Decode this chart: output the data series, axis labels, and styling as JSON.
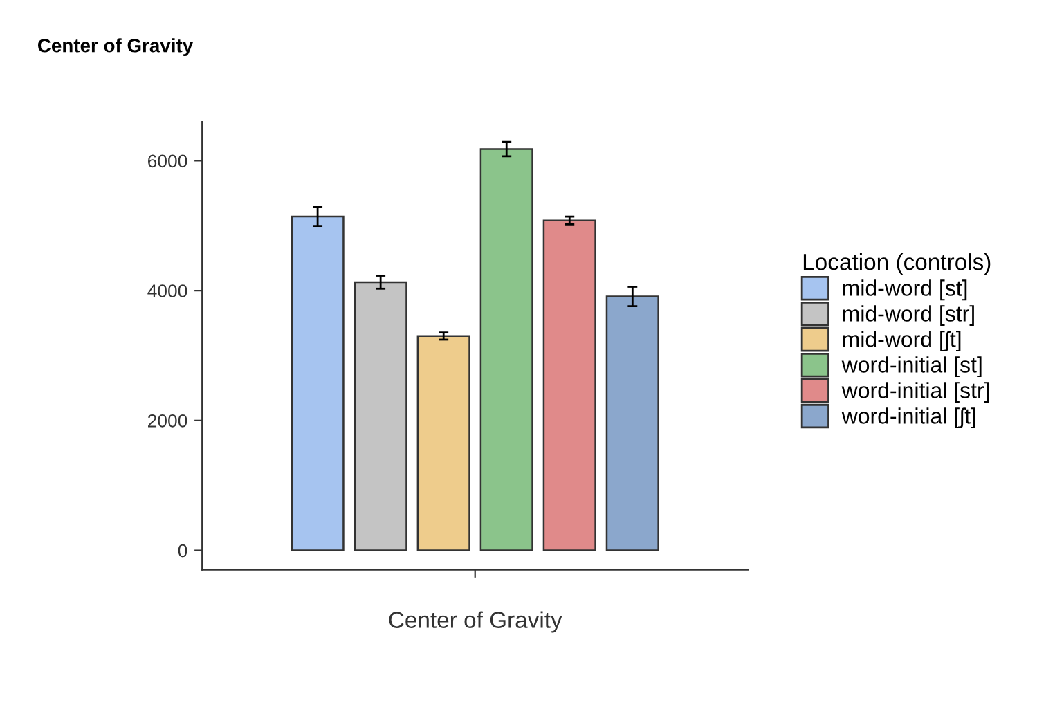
{
  "chart_data": {
    "type": "bar",
    "title": "Center of Gravity",
    "xlabel": "Center of Gravity",
    "legend_title": "Location (controls)",
    "categories": [
      null
    ],
    "series": [
      {
        "name": "mid-word [st]",
        "color": "#a6c4f0",
        "values": [
          5140
        ],
        "errors": [
          145
        ]
      },
      {
        "name": "mid-word [str]",
        "color": "#c4c4c4",
        "values": [
          4130
        ],
        "errors": [
          100
        ]
      },
      {
        "name": "mid-word [ʃt]",
        "color": "#eecc8c",
        "values": [
          3300
        ],
        "errors": [
          55
        ]
      },
      {
        "name": "word-initial [st]",
        "color": "#8bc48b",
        "values": [
          6180
        ],
        "errors": [
          110
        ]
      },
      {
        "name": "word-initial [str]",
        "color": "#e08a8a",
        "values": [
          5080
        ],
        "errors": [
          60
        ]
      },
      {
        "name": "word-initial [ʃt]",
        "color": "#8ba7cc",
        "values": [
          3910
        ],
        "errors": [
          150
        ]
      }
    ],
    "ylim": [
      -300,
      6600
    ],
    "yticks": [
      0,
      2000,
      4000,
      6000
    ],
    "grid": false,
    "legend": "right"
  }
}
